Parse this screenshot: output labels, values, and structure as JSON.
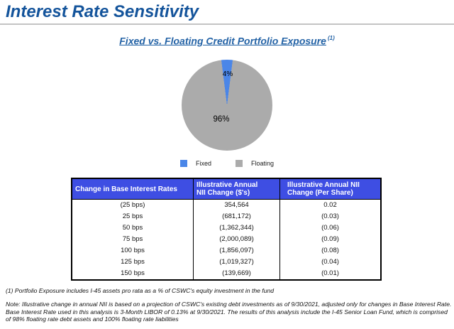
{
  "page": {
    "title": "Interest Rate Sensitivity",
    "subtitle": "Fixed vs. Floating Credit Portfolio Exposure",
    "subtitle_superscript": "(1)"
  },
  "chart_data": {
    "type": "pie",
    "title": "Fixed vs. Floating Credit Portfolio Exposure",
    "slices": [
      {
        "label": "Fixed",
        "value": 4,
        "display": "4%",
        "color": "#4A86E8"
      },
      {
        "label": "Floating",
        "value": 96,
        "display": "96%",
        "color": "#ABABAB"
      }
    ],
    "legend_position": "bottom",
    "start_angle": "centered at 12 o'clock"
  },
  "legend": {
    "items": [
      {
        "label": "Fixed",
        "color": "#4A86E8"
      },
      {
        "label": "Floating",
        "color": "#ABABAB"
      }
    ]
  },
  "table": {
    "header_bg": "#3E4EE3",
    "headers": [
      {
        "line1": "Change in Base Interest Rates",
        "line2": ""
      },
      {
        "line1": "Illustrative Annual",
        "line2": "NII Change ($'s)"
      },
      {
        "line1": "Illustrative Annual NII",
        "line2": "Change (Per Share)"
      }
    ],
    "rows": [
      [
        "(25 bps)",
        "354,564",
        "0.02"
      ],
      [
        "25 bps",
        "(681,172)",
        "(0.03)"
      ],
      [
        "50 bps",
        "(1,362,344)",
        "(0.06)"
      ],
      [
        "75 bps",
        "(2,000,089)",
        "(0.09)"
      ],
      [
        "100 bps",
        "(1,856,097)",
        "(0.08)"
      ],
      [
        "125 bps",
        "(1,019,327)",
        "(0.04)"
      ],
      [
        "150 bps",
        "(139,669)",
        "(0.01)"
      ]
    ]
  },
  "footnotes": {
    "footnote1": "(1) Portfolio Exposure includes I-45 assets pro rata as a % of CSWC's equity investment in the fund",
    "note": "Note:  Illustrative change in annual NII is based on a projection of CSWC's existing debt investments as of 9/30/2021, adjusted only for changes in Base Interest Rate. Base Interest Rate used in this analysis is 3-Month LIBOR of 0.13% at 9/30/2021.  The results of this analysis include the I-45 Senior Loan Fund, which is comprised of 98% floating rate debt assets and 100% floating rate liabilities"
  }
}
